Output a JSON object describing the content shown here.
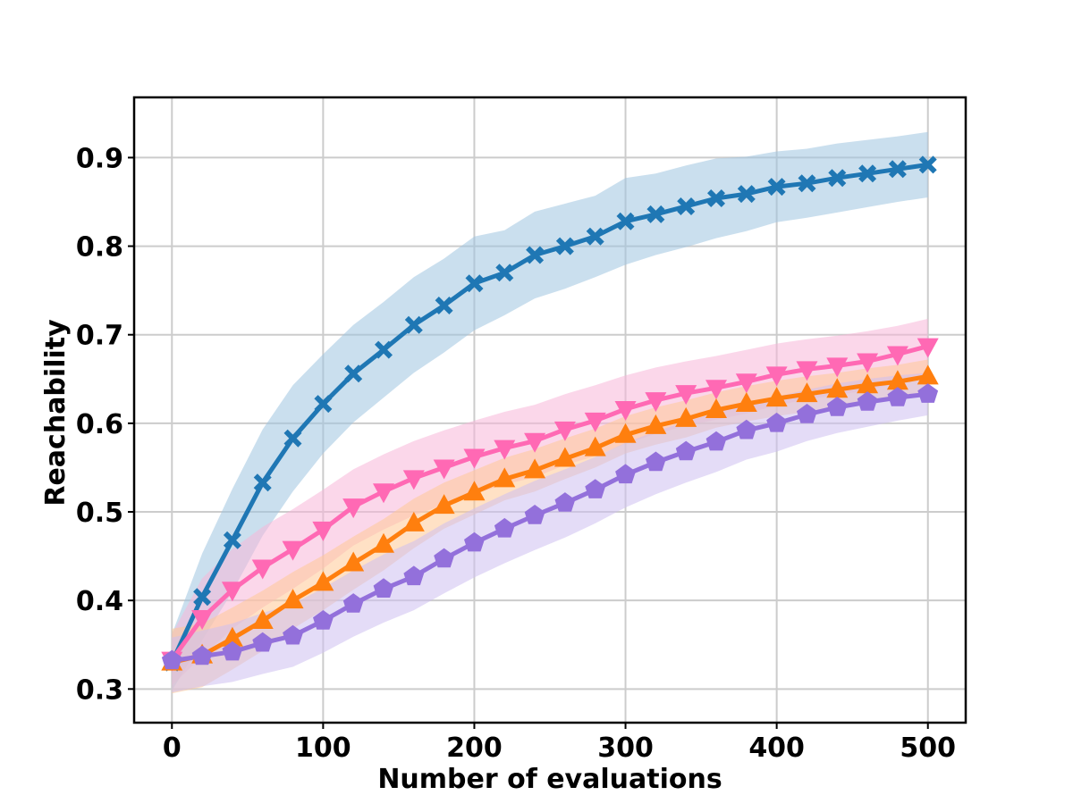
{
  "chart_data": {
    "type": "line",
    "title": "",
    "xlabel": "Number of evaluations",
    "ylabel": "Reachability",
    "xlim": [
      -25,
      525
    ],
    "ylim": [
      0.262,
      0.968
    ],
    "xticks": [
      0,
      100,
      200,
      300,
      400,
      500
    ],
    "yticks": [
      0.3,
      0.4,
      0.5,
      0.6,
      0.7,
      0.8,
      0.9
    ],
    "xtick_labels": [
      "0",
      "100",
      "200",
      "300",
      "400",
      "500"
    ],
    "ytick_labels": [
      "0.3",
      "0.4",
      "0.5",
      "0.6",
      "0.7",
      "0.8",
      "0.9"
    ],
    "grid": true,
    "x": [
      0,
      20,
      40,
      60,
      80,
      100,
      120,
      140,
      160,
      180,
      200,
      220,
      240,
      260,
      280,
      300,
      320,
      340,
      360,
      380,
      400,
      420,
      440,
      460,
      480,
      500
    ],
    "series": [
      {
        "name": "series-blue-x",
        "color": "#1f77b4",
        "band_color": "#9ec4e0",
        "marker": "x",
        "values": [
          0.33,
          0.404,
          0.468,
          0.533,
          0.583,
          0.622,
          0.656,
          0.683,
          0.711,
          0.733,
          0.758,
          0.77,
          0.79,
          0.8,
          0.811,
          0.828,
          0.836,
          0.845,
          0.854,
          0.859,
          0.867,
          0.871,
          0.877,
          0.882,
          0.887,
          0.892
        ],
        "lower": [
          0.298,
          0.355,
          0.41,
          0.473,
          0.523,
          0.566,
          0.601,
          0.629,
          0.657,
          0.68,
          0.705,
          0.722,
          0.741,
          0.752,
          0.765,
          0.779,
          0.79,
          0.799,
          0.809,
          0.817,
          0.827,
          0.832,
          0.838,
          0.844,
          0.85,
          0.855
        ]
      },
      {
        "name": "series-pink-triangle-down",
        "color": "#ff69b4",
        "band_color": "#f7b6d9",
        "marker": "triangle-down",
        "values": [
          0.333,
          0.38,
          0.412,
          0.437,
          0.458,
          0.48,
          0.506,
          0.523,
          0.538,
          0.55,
          0.562,
          0.572,
          0.58,
          0.593,
          0.603,
          0.616,
          0.626,
          0.634,
          0.64,
          0.647,
          0.655,
          0.661,
          0.665,
          0.67,
          0.678,
          0.687
        ],
        "upper": [
          0.362,
          0.425,
          0.458,
          0.483,
          0.503,
          0.525,
          0.548,
          0.565,
          0.58,
          0.592,
          0.603,
          0.613,
          0.621,
          0.633,
          0.643,
          0.654,
          0.663,
          0.67,
          0.676,
          0.683,
          0.69,
          0.695,
          0.699,
          0.704,
          0.71,
          0.718
        ],
        "lower": [
          0.304,
          0.337,
          0.368,
          0.392,
          0.413,
          0.436,
          0.462,
          0.48,
          0.496,
          0.508,
          0.52,
          0.531,
          0.539,
          0.553,
          0.563,
          0.577,
          0.588,
          0.597,
          0.604,
          0.611,
          0.62,
          0.627,
          0.632,
          0.637,
          0.646,
          0.655
        ]
      },
      {
        "name": "series-orange-triangle-up",
        "color": "#ff7f0e",
        "band_color": "#ffc896",
        "marker": "triangle-up",
        "values": [
          0.33,
          0.338,
          0.357,
          0.377,
          0.4,
          0.42,
          0.442,
          0.463,
          0.487,
          0.507,
          0.522,
          0.537,
          0.547,
          0.56,
          0.572,
          0.587,
          0.597,
          0.605,
          0.615,
          0.622,
          0.628,
          0.633,
          0.638,
          0.643,
          0.647,
          0.653
        ],
        "upper": [
          0.368,
          0.374,
          0.392,
          0.411,
          0.432,
          0.451,
          0.472,
          0.492,
          0.515,
          0.533,
          0.547,
          0.561,
          0.571,
          0.583,
          0.594,
          0.608,
          0.618,
          0.626,
          0.635,
          0.642,
          0.648,
          0.653,
          0.657,
          0.662,
          0.666,
          0.672
        ],
        "lower": [
          0.295,
          0.302,
          0.322,
          0.343,
          0.368,
          0.389,
          0.412,
          0.434,
          0.459,
          0.481,
          0.497,
          0.513,
          0.523,
          0.537,
          0.55,
          0.566,
          0.576,
          0.584,
          0.595,
          0.602,
          0.608,
          0.613,
          0.619,
          0.624,
          0.628,
          0.634
        ]
      },
      {
        "name": "series-purple-pentagon",
        "color": "#9370db",
        "band_color": "#cdbff0",
        "marker": "pentagon",
        "values": [
          0.332,
          0.337,
          0.342,
          0.352,
          0.36,
          0.377,
          0.396,
          0.413,
          0.427,
          0.447,
          0.465,
          0.481,
          0.496,
          0.51,
          0.525,
          0.542,
          0.556,
          0.568,
          0.579,
          0.592,
          0.6,
          0.61,
          0.618,
          0.624,
          0.629,
          0.633
        ],
        "upper": [
          0.358,
          0.366,
          0.374,
          0.386,
          0.396,
          0.414,
          0.434,
          0.452,
          0.467,
          0.487,
          0.504,
          0.52,
          0.535,
          0.548,
          0.562,
          0.578,
          0.591,
          0.602,
          0.612,
          0.623,
          0.63,
          0.638,
          0.645,
          0.65,
          0.654,
          0.657
        ],
        "lower": [
          0.296,
          0.303,
          0.308,
          0.317,
          0.325,
          0.341,
          0.359,
          0.375,
          0.389,
          0.408,
          0.426,
          0.442,
          0.457,
          0.471,
          0.487,
          0.505,
          0.52,
          0.533,
          0.545,
          0.559,
          0.568,
          0.58,
          0.589,
          0.596,
          0.603,
          0.609
        ]
      }
    ]
  }
}
